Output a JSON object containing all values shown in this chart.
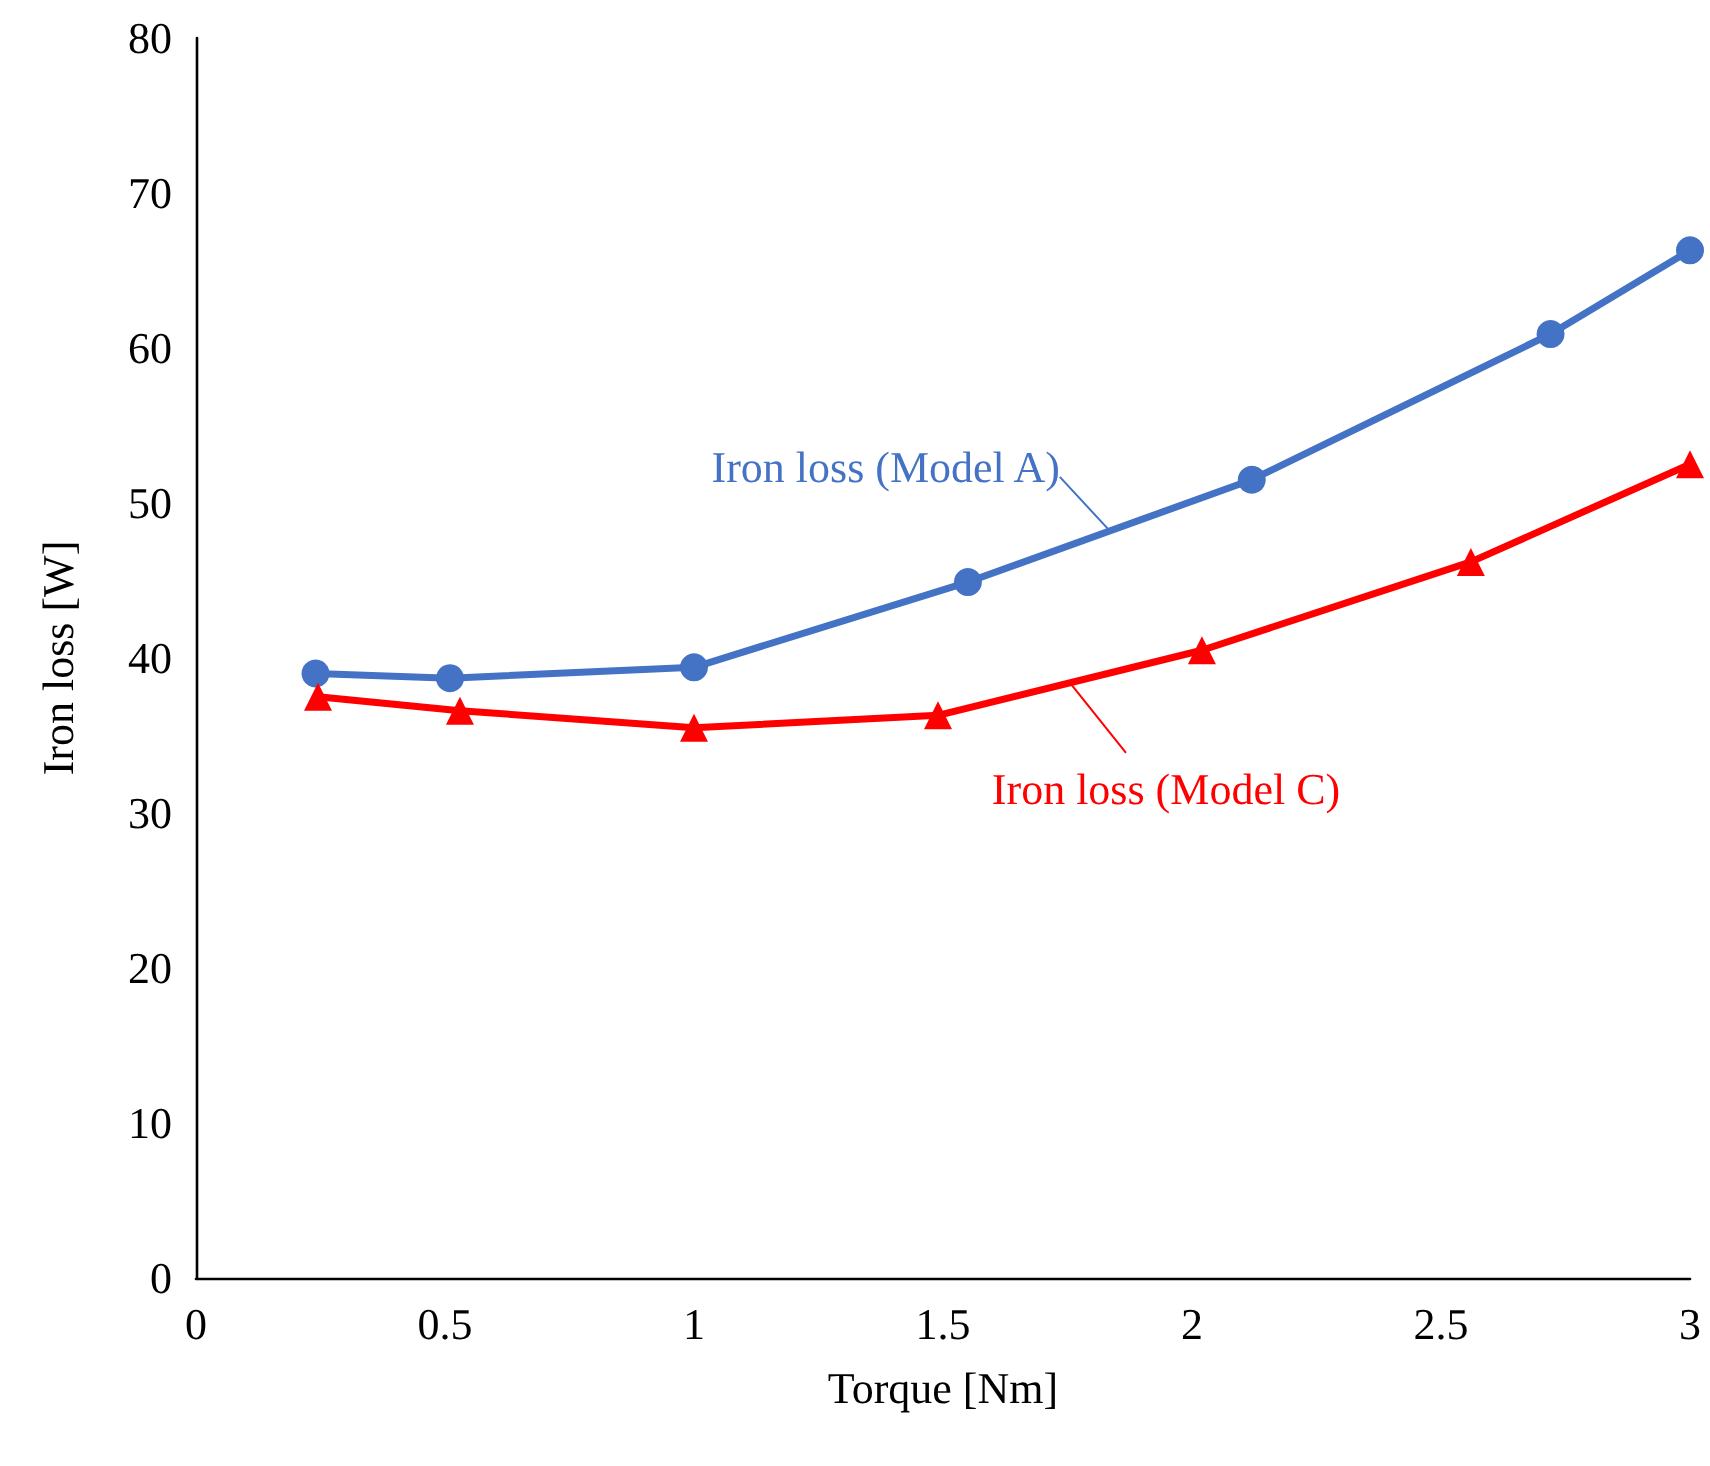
{
  "chart_data": {
    "type": "line",
    "xlabel": "Torque [Nm]",
    "ylabel": "Iron loss [W]",
    "xlim": [
      0,
      3
    ],
    "xticks": [
      0,
      0.5,
      1,
      1.5,
      2,
      2.5,
      3
    ],
    "ylim": [
      0,
      80
    ],
    "yticks": [
      0,
      10,
      20,
      30,
      40,
      50,
      60,
      70,
      80
    ],
    "grid": false,
    "series": [
      {
        "name": "Iron loss (Model A)",
        "color": "#4472c4",
        "marker": "circle",
        "x": [
          0.24,
          0.51,
          1.0,
          1.55,
          2.12,
          2.72,
          3.0
        ],
        "values": [
          39.0,
          38.7,
          39.4,
          44.9,
          51.5,
          60.9,
          66.3
        ]
      },
      {
        "name": "Iron loss (Model C)",
        "color": "#ff0000",
        "marker": "triangle",
        "x": [
          0.245,
          0.53,
          1.0,
          1.49,
          2.02,
          2.56,
          3.0
        ],
        "values": [
          37.5,
          36.6,
          35.5,
          36.3,
          40.5,
          46.2,
          52.5
        ]
      }
    ]
  }
}
